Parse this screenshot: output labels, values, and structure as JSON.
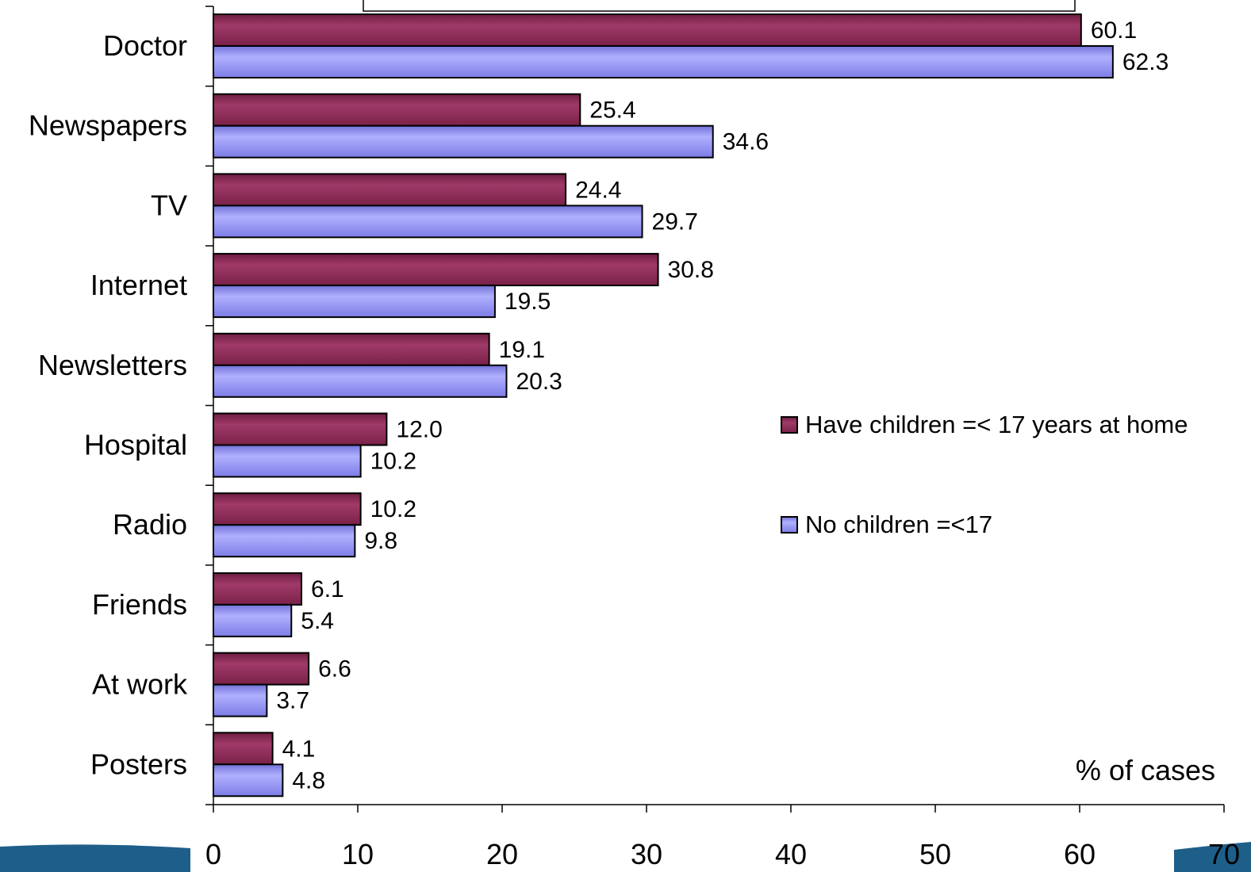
{
  "chart_data": {
    "type": "bar",
    "orientation": "horizontal",
    "categories": [
      "Doctor",
      "Newspapers",
      "TV",
      "Internet",
      "Newsletters",
      "Hospital",
      "Radio",
      "Friends",
      "At work",
      "Posters"
    ],
    "series": [
      {
        "name": "Have children =< 17 years at home",
        "color": "#8B2A55",
        "values": [
          60.1,
          25.4,
          24.4,
          30.8,
          19.1,
          12.0,
          10.2,
          6.1,
          6.6,
          4.1
        ],
        "labels": [
          "60.1",
          "25.4",
          "24.4",
          "30.8",
          "19.1",
          "12.0",
          "10.2",
          "6.1",
          "6.6",
          "4.1"
        ]
      },
      {
        "name": "No children =<17",
        "color": "#8F8FF0",
        "values": [
          62.3,
          34.6,
          29.7,
          19.5,
          20.3,
          10.2,
          9.8,
          5.4,
          3.7,
          4.8
        ],
        "labels": [
          "62.3",
          "34.6",
          "29.7",
          "19.5",
          "20.3",
          "10.2",
          "9.8",
          "5.4",
          "3.7",
          "4.8"
        ]
      }
    ],
    "xlim": [
      0,
      70
    ],
    "xticks": [
      0,
      10,
      20,
      30,
      40,
      50,
      60,
      70
    ],
    "xtick_labels": [
      "0",
      "10",
      "20",
      "30",
      "40",
      "50",
      "60",
      "70"
    ],
    "xlabel": "% of cases",
    "legend_position": "right"
  }
}
